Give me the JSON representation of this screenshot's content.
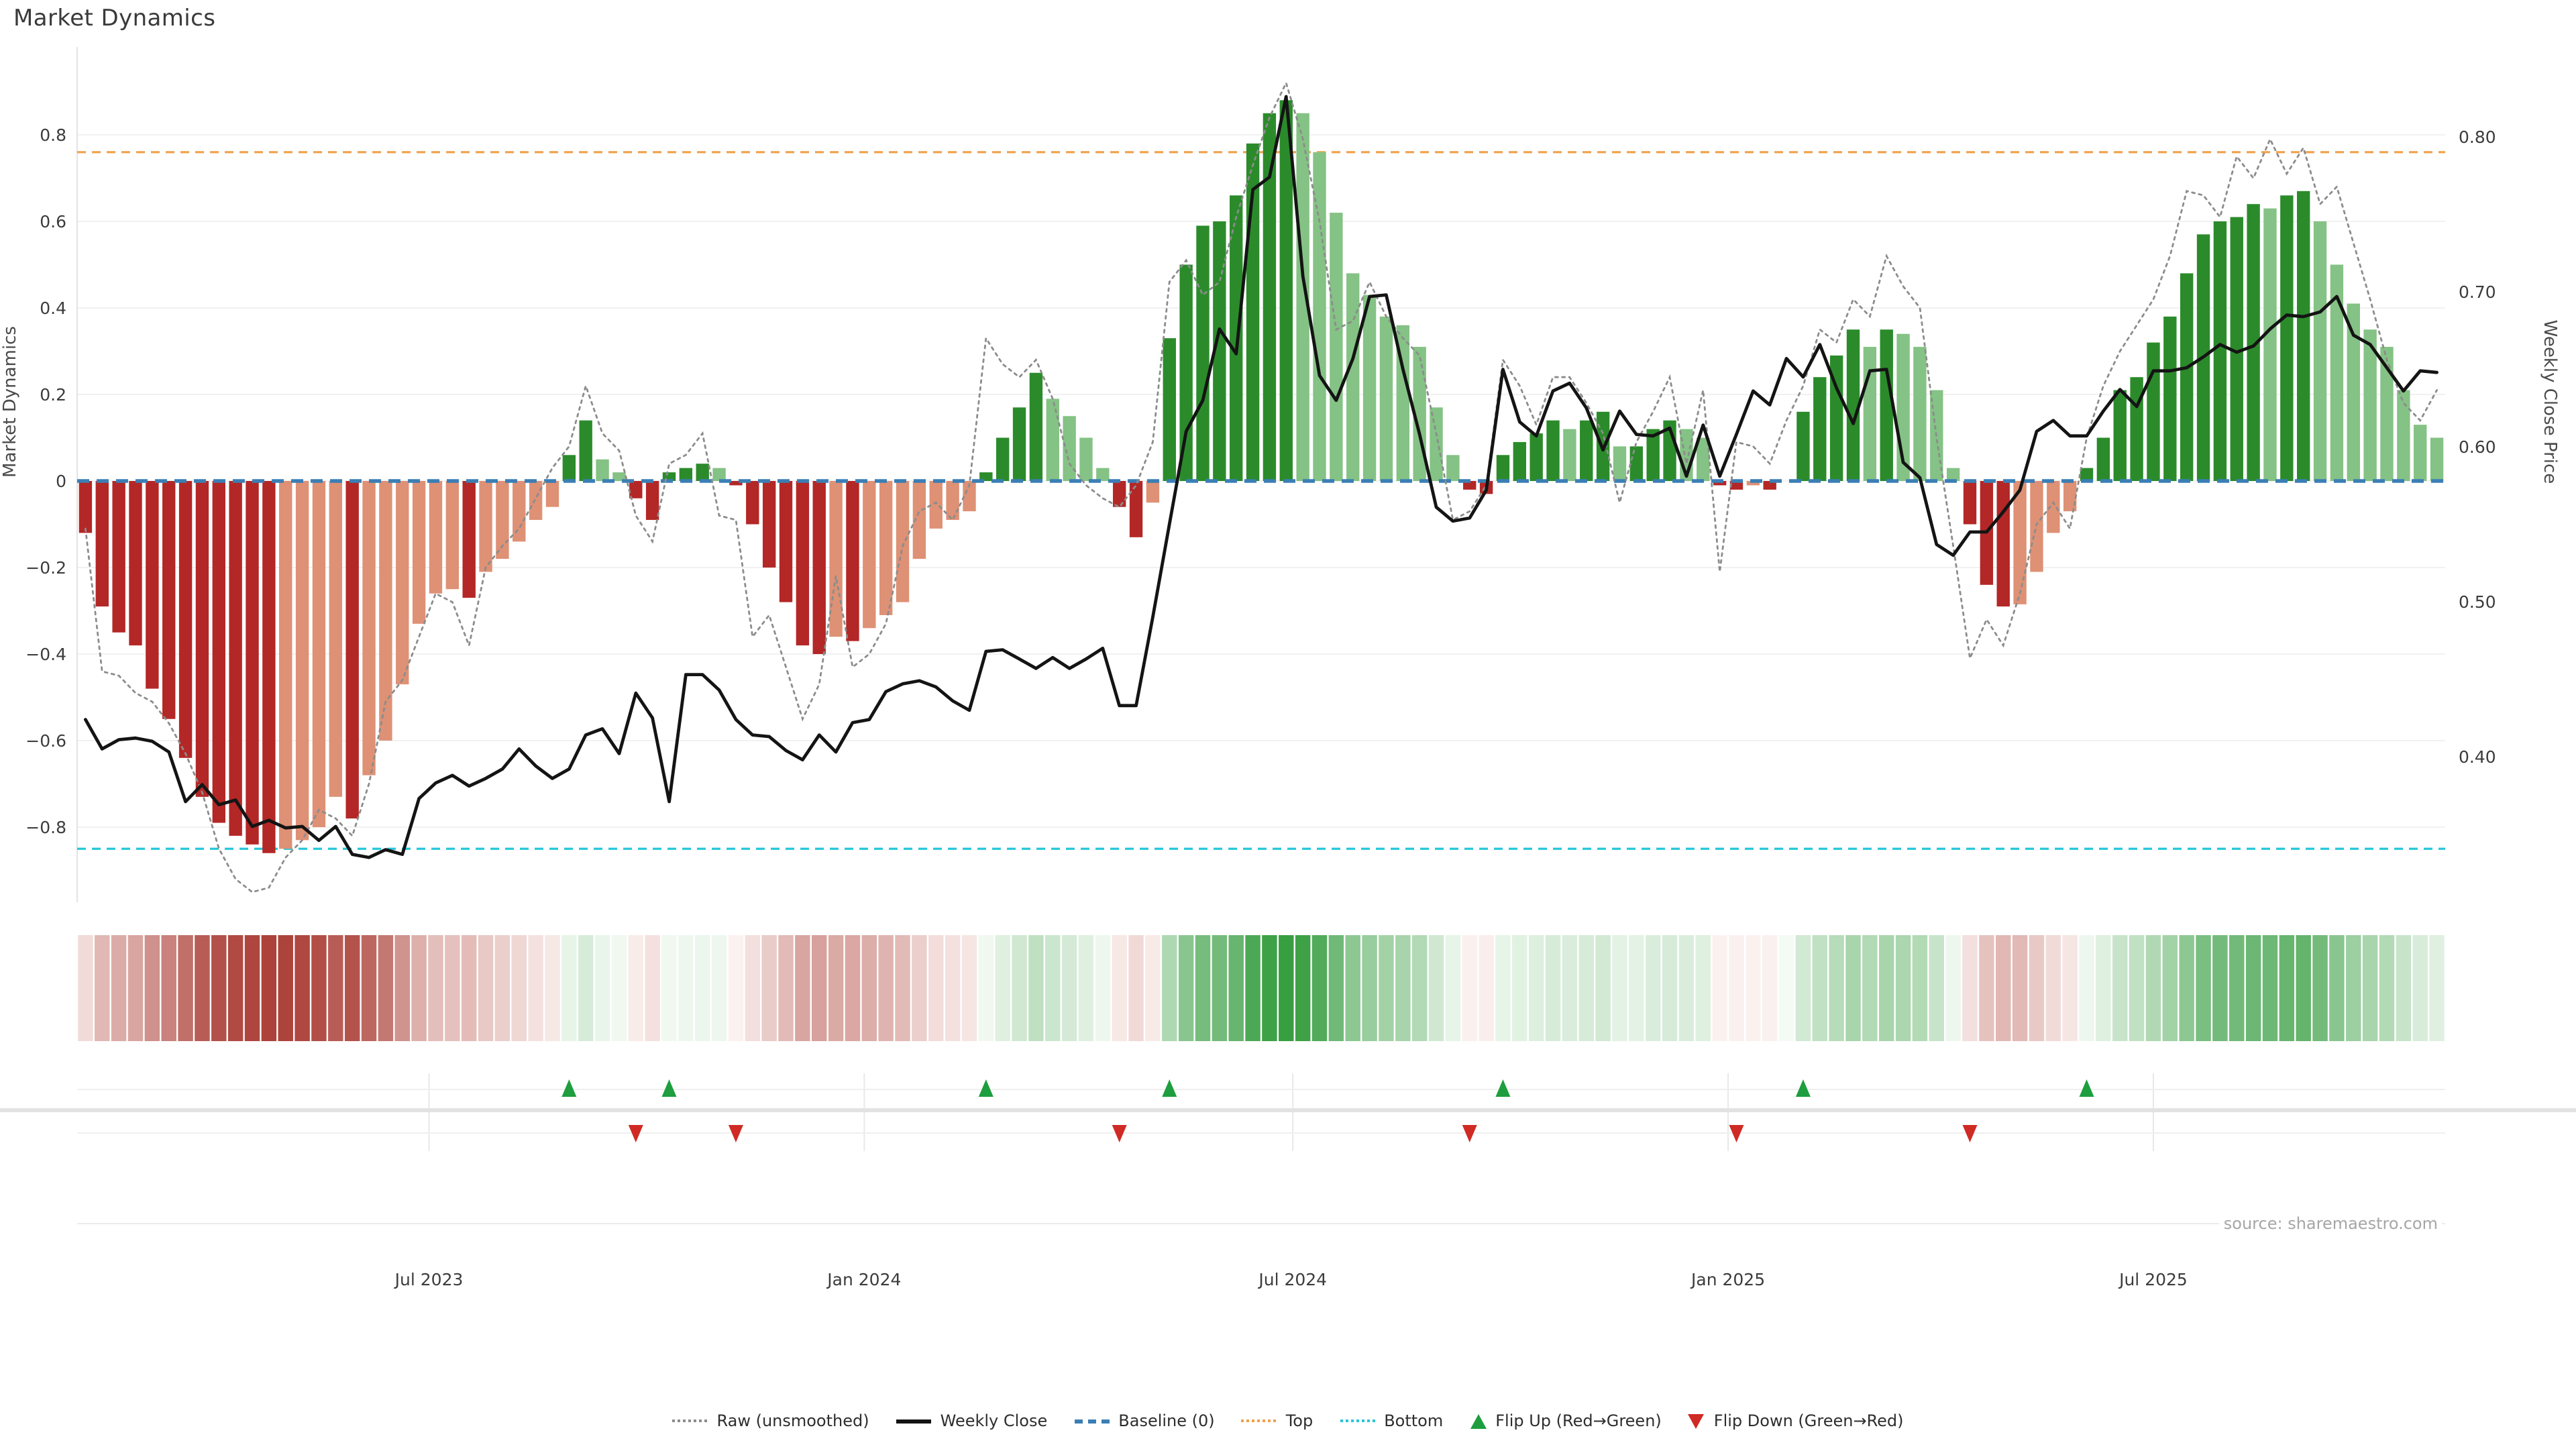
{
  "title": "Market Dynamics",
  "source": {
    "text": "source: sharemaestro.com"
  },
  "left_axis": {
    "label": "Market Dynamics",
    "ticks": [
      {
        "label": "0.8",
        "value": 0.8
      },
      {
        "label": "0.6",
        "value": 0.6
      },
      {
        "label": "0.4",
        "value": 0.4
      },
      {
        "label": "0.2",
        "value": 0.2
      },
      {
        "label": "0",
        "value": 0.0
      },
      {
        "label": "−0.2",
        "value": -0.2
      },
      {
        "label": "−0.4",
        "value": -0.4
      },
      {
        "label": "−0.6",
        "value": -0.6
      },
      {
        "label": "−0.8",
        "value": -0.8
      }
    ]
  },
  "right_axis": {
    "label": "Weekly Close Price",
    "ticks": [
      {
        "label": "0.80",
        "value": 0.8
      },
      {
        "label": "0.70",
        "value": 0.7
      },
      {
        "label": "0.60",
        "value": 0.6
      },
      {
        "label": "0.50",
        "value": 0.5
      },
      {
        "label": "0.40",
        "value": 0.4
      }
    ]
  },
  "x_axis": {
    "ticks": [
      {
        "label": "Jul 2023",
        "week": 20.6
      },
      {
        "label": "Jan 2024",
        "week": 46.7
      },
      {
        "label": "Jul 2024",
        "week": 72.4
      },
      {
        "label": "Jan 2025",
        "week": 98.5
      },
      {
        "label": "Jul 2025",
        "week": 124.0
      }
    ]
  },
  "legend": [
    {
      "label": "Raw (unsmoothed)",
      "swatch": "dotted",
      "color": "#8c8c8c"
    },
    {
      "label": "Weekly Close",
      "swatch": "solid",
      "color": "#141414"
    },
    {
      "label": "Baseline (0)",
      "swatch": "dashes",
      "color": "#3b7eb5"
    },
    {
      "label": "Top",
      "swatch": "dots",
      "color": "#f0a04a"
    },
    {
      "label": "Bottom",
      "swatch": "dots",
      "color": "#26c6da"
    },
    {
      "label": "Flip Up (Red→Green)",
      "swatch": "triangle-up",
      "color": "#1e9e3e"
    },
    {
      "label": "Flip Down (Green→Red)",
      "swatch": "triangle-down",
      "color": "#d02a24"
    }
  ],
  "colors": {
    "bar_neg_strong": "#b32726",
    "bar_neg_soft": "#de9175",
    "bar_pos_strong": "#2b8b2b",
    "bar_pos_soft": "#85c285",
    "baseline": "#3b7eb5",
    "top_line": "#f0a04a",
    "bottom_line": "#26c6da",
    "raw_line": "#8c8c8c",
    "close_line": "#141414",
    "grid": "#f1f1f1",
    "flip_up": "#1e9e3e",
    "flip_down": "#d02a24"
  },
  "chart_data": {
    "type": "bar",
    "subtype": "combo bar+line, weekly, Feb 2023 – Nov 2025",
    "title": "Market Dynamics",
    "ylabel_left": "Market Dynamics",
    "ylabel_right": "Weekly Close Price",
    "ylim_left": [
      -0.97,
      1.0
    ],
    "ylim_right": [
      0.306,
      0.858
    ],
    "baseline": 0,
    "top_line": 0.76,
    "bottom_line": -0.85,
    "weeks": 142,
    "flip_up_weeks": [
      29,
      35,
      54,
      65,
      85,
      103,
      120
    ],
    "flip_down_weeks": [
      33,
      39,
      62,
      83,
      99,
      113
    ],
    "series": [
      {
        "name": "Market Dynamics (smoothed bars)",
        "type": "bar",
        "axis": "left",
        "values": [
          -0.12,
          -0.29,
          -0.35,
          -0.38,
          -0.48,
          -0.55,
          -0.64,
          -0.73,
          -0.79,
          -0.82,
          -0.84,
          -0.86,
          -0.85,
          -0.83,
          -0.8,
          -0.73,
          -0.78,
          -0.68,
          -0.6,
          -0.47,
          -0.33,
          -0.26,
          -0.25,
          -0.27,
          -0.21,
          -0.18,
          -0.14,
          -0.09,
          -0.06,
          0.06,
          0.14,
          0.05,
          0.02,
          -0.04,
          -0.09,
          0.02,
          0.03,
          0.04,
          0.03,
          -0.01,
          -0.1,
          -0.2,
          -0.28,
          -0.38,
          -0.4,
          -0.36,
          -0.37,
          -0.34,
          -0.31,
          -0.28,
          -0.18,
          -0.11,
          -0.09,
          -0.07,
          0.02,
          0.1,
          0.17,
          0.25,
          0.19,
          0.15,
          0.1,
          0.03,
          -0.06,
          -0.13,
          -0.05,
          0.33,
          0.5,
          0.59,
          0.6,
          0.66,
          0.78,
          0.85,
          0.88,
          0.85,
          0.76,
          0.62,
          0.48,
          0.43,
          0.38,
          0.36,
          0.31,
          0.17,
          0.06,
          -0.02,
          -0.03,
          0.06,
          0.09,
          0.11,
          0.14,
          0.12,
          0.14,
          0.16,
          0.08,
          0.08,
          0.12,
          0.14,
          0.12,
          0.1,
          -0.01,
          -0.02,
          -0.01,
          -0.02,
          0.0,
          0.16,
          0.24,
          0.29,
          0.35,
          0.31,
          0.35,
          0.34,
          0.31,
          0.21,
          0.03,
          -0.1,
          -0.24,
          -0.29,
          -0.285,
          -0.21,
          -0.12,
          -0.07,
          0.03,
          0.1,
          0.21,
          0.24,
          0.32,
          0.38,
          0.48,
          0.57,
          0.6,
          0.61,
          0.64,
          0.63,
          0.66,
          0.67,
          0.6,
          0.5,
          0.41,
          0.35,
          0.31,
          0.21,
          0.13,
          0.1
        ]
      },
      {
        "name": "Raw (unsmoothed)",
        "type": "line",
        "style": "dotted",
        "axis": "left",
        "values": [
          -0.11,
          -0.44,
          -0.45,
          -0.49,
          -0.51,
          -0.56,
          -0.63,
          -0.72,
          -0.85,
          -0.92,
          -0.95,
          -0.94,
          -0.87,
          -0.83,
          -0.76,
          -0.78,
          -0.82,
          -0.7,
          -0.51,
          -0.46,
          -0.36,
          -0.26,
          -0.28,
          -0.38,
          -0.2,
          -0.15,
          -0.11,
          -0.04,
          0.03,
          0.08,
          0.22,
          0.11,
          0.07,
          -0.08,
          -0.14,
          0.04,
          0.06,
          0.11,
          -0.08,
          -0.09,
          -0.36,
          -0.31,
          -0.43,
          -0.55,
          -0.47,
          -0.22,
          -0.43,
          -0.4,
          -0.33,
          -0.15,
          -0.07,
          -0.05,
          -0.09,
          -0.01,
          0.33,
          0.27,
          0.24,
          0.28,
          0.19,
          0.04,
          -0.01,
          -0.04,
          -0.06,
          -0.01,
          0.09,
          0.46,
          0.51,
          0.43,
          0.46,
          0.61,
          0.73,
          0.84,
          0.92,
          0.79,
          0.6,
          0.35,
          0.37,
          0.46,
          0.38,
          0.33,
          0.29,
          0.11,
          -0.09,
          -0.07,
          -0.01,
          0.28,
          0.22,
          0.13,
          0.24,
          0.24,
          0.18,
          0.11,
          -0.05,
          0.09,
          0.16,
          0.24,
          0.04,
          0.21,
          -0.21,
          0.09,
          0.08,
          0.04,
          0.14,
          0.22,
          0.35,
          0.32,
          0.42,
          0.38,
          0.52,
          0.45,
          0.4,
          0.1,
          -0.15,
          -0.41,
          -0.32,
          -0.38,
          -0.26,
          -0.1,
          -0.05,
          -0.11,
          0.1,
          0.22,
          0.3,
          0.36,
          0.42,
          0.52,
          0.67,
          0.66,
          0.61,
          0.75,
          0.7,
          0.79,
          0.71,
          0.77,
          0.64,
          0.68,
          0.55,
          0.42,
          0.28,
          0.18,
          0.14,
          0.21
        ]
      },
      {
        "name": "Weekly Close",
        "type": "line",
        "style": "solid",
        "axis": "right",
        "values": [
          0.424,
          0.405,
          0.411,
          0.412,
          0.41,
          0.403,
          0.371,
          0.382,
          0.369,
          0.372,
          0.355,
          0.359,
          0.354,
          0.355,
          0.346,
          0.355,
          0.337,
          0.335,
          0.34,
          0.337,
          0.373,
          0.383,
          0.388,
          0.381,
          0.386,
          0.392,
          0.405,
          0.394,
          0.386,
          0.392,
          0.414,
          0.418,
          0.402,
          0.441,
          0.425,
          0.371,
          0.453,
          0.453,
          0.443,
          0.424,
          0.414,
          0.413,
          0.404,
          0.398,
          0.414,
          0.403,
          0.422,
          0.424,
          0.442,
          0.447,
          0.449,
          0.445,
          0.436,
          0.43,
          0.468,
          0.469,
          0.463,
          0.457,
          0.464,
          0.457,
          0.463,
          0.47,
          0.433,
          0.433,
          0.49,
          0.55,
          0.61,
          0.63,
          0.676,
          0.66,
          0.766,
          0.774,
          0.826,
          0.71,
          0.646,
          0.63,
          0.657,
          0.697,
          0.698,
          0.65,
          0.608,
          0.561,
          0.552,
          0.554,
          0.572,
          0.65,
          0.616,
          0.607,
          0.636,
          0.641,
          0.625,
          0.598,
          0.623,
          0.608,
          0.607,
          0.612,
          0.581,
          0.614,
          0.581,
          0.608,
          0.636,
          0.627,
          0.657,
          0.645,
          0.666,
          0.638,
          0.615,
          0.649,
          0.65,
          0.59,
          0.58,
          0.537,
          0.53,
          0.545,
          0.545,
          0.558,
          0.572,
          0.61,
          0.617,
          0.607,
          0.607,
          0.623,
          0.637,
          0.626,
          0.649,
          0.649,
          0.651,
          0.658,
          0.666,
          0.661,
          0.665,
          0.676,
          0.685,
          0.684,
          0.687,
          0.697,
          0.672,
          0.666,
          0.651,
          0.636,
          0.649,
          0.648
        ]
      }
    ],
    "heatmap_strip": "one cell per week, red→green diverging color mapped from smoothed bar values",
    "legend_position": "bottom center",
    "grid": true
  }
}
